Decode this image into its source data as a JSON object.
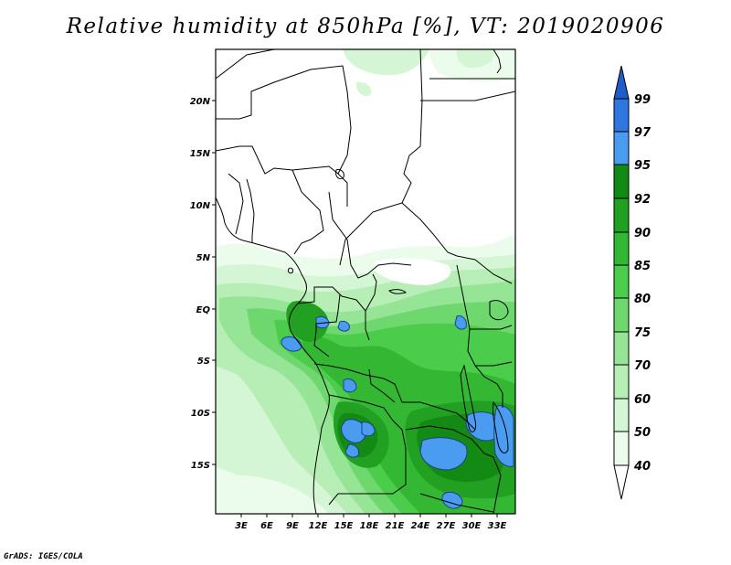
{
  "title": "Relative humidity at 850hPa [%], VT: 2019020906",
  "footer": "GrADS: IGES/COLA",
  "map": {
    "lat_labels": [
      "20N",
      "15N",
      "10N",
      "5N",
      "EQ",
      "5S",
      "10S",
      "15S"
    ],
    "lon_labels": [
      "3E",
      "6E",
      "9E",
      "12E",
      "15E",
      "18E",
      "21E",
      "24E",
      "27E",
      "30E",
      "33E"
    ]
  },
  "colorbar": {
    "levels": [
      "99",
      "97",
      "95",
      "92",
      "90",
      "85",
      "80",
      "75",
      "70",
      "60",
      "50",
      "40"
    ],
    "colors": {
      "above_99": "#1f5ec8",
      "97_99": "#2e77e0",
      "95_97": "#4a9cf0",
      "92_95": "#138a13",
      "90_92": "#22a022",
      "85_90": "#34b834",
      "80_85": "#4bcc4b",
      "75_80": "#6ed86e",
      "70_75": "#96e496",
      "60_70": "#b6eeb6",
      "50_60": "#d4f6d4",
      "40_50": "#ecfcec",
      "below_40": "#ffffff"
    }
  }
}
